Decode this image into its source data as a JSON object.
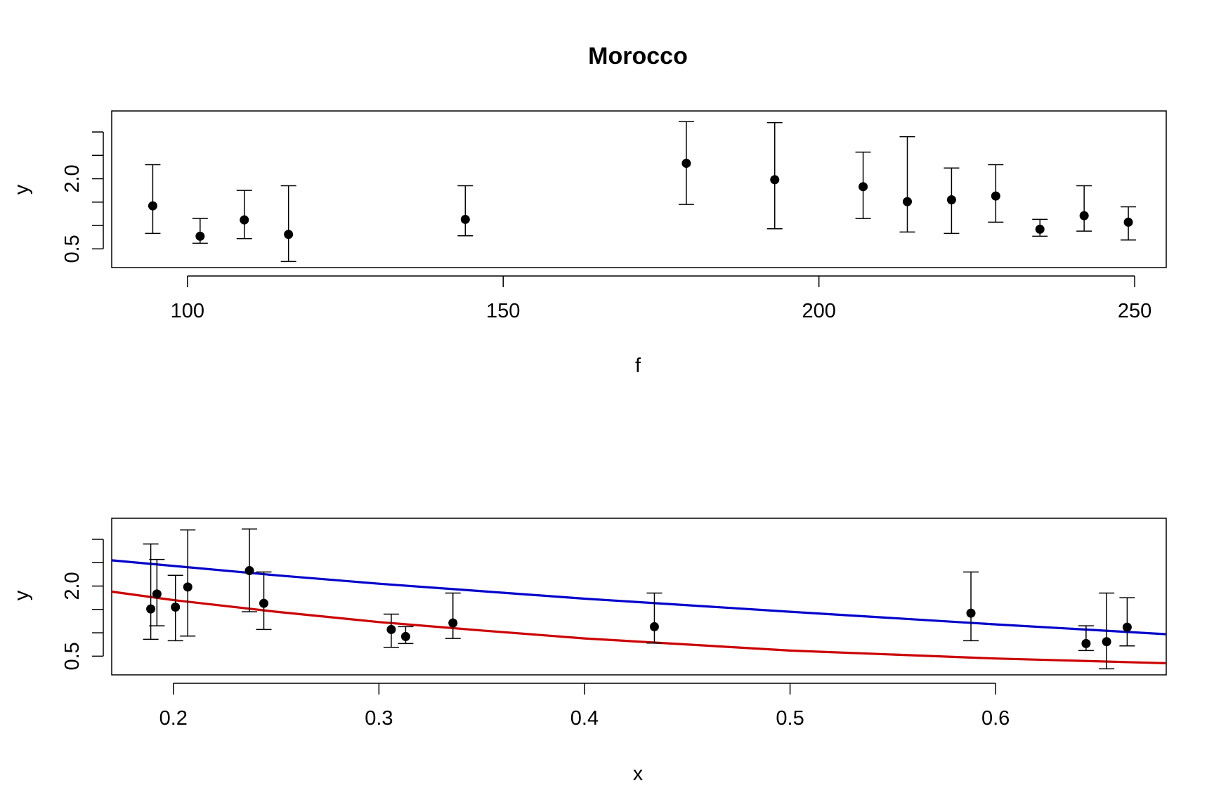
{
  "chart_data": [
    {
      "type": "scatter",
      "title": "Morocco",
      "xlabel": "f",
      "ylabel": "y",
      "xlim": [
        88,
        255
      ],
      "ylim": [
        0.1,
        3.45
      ],
      "xticks": [
        100,
        150,
        200,
        250
      ],
      "yticks": [
        0.5,
        1.0,
        1.5,
        2.0,
        2.5,
        3.0
      ],
      "ytick_labels": [
        "0.5",
        "",
        "",
        "2.0",
        "",
        ""
      ],
      "error_bars": true,
      "series": [
        {
          "color": "#000000",
          "points": [
            {
              "x": 94.5,
              "y": 1.42,
              "lo": 0.83,
              "hi": 2.3
            },
            {
              "x": 102,
              "y": 0.77,
              "lo": 0.62,
              "hi": 1.15
            },
            {
              "x": 109,
              "y": 1.12,
              "lo": 0.72,
              "hi": 1.75
            },
            {
              "x": 116,
              "y": 0.81,
              "lo": 0.23,
              "hi": 1.85
            },
            {
              "x": 144,
              "y": 1.13,
              "lo": 0.78,
              "hi": 1.85
            },
            {
              "x": 179,
              "y": 2.33,
              "lo": 1.45,
              "hi": 3.22
            },
            {
              "x": 193,
              "y": 1.98,
              "lo": 0.93,
              "hi": 3.2
            },
            {
              "x": 207,
              "y": 1.83,
              "lo": 1.15,
              "hi": 2.57
            },
            {
              "x": 214,
              "y": 1.51,
              "lo": 0.86,
              "hi": 2.9
            },
            {
              "x": 221,
              "y": 1.55,
              "lo": 0.83,
              "hi": 2.23
            },
            {
              "x": 228,
              "y": 1.63,
              "lo": 1.07,
              "hi": 2.3
            },
            {
              "x": 235,
              "y": 0.92,
              "lo": 0.77,
              "hi": 1.13
            },
            {
              "x": 242,
              "y": 1.21,
              "lo": 0.88,
              "hi": 1.85
            },
            {
              "x": 249,
              "y": 1.07,
              "lo": 0.69,
              "hi": 1.4
            }
          ]
        }
      ]
    },
    {
      "type": "scatter",
      "title": "",
      "xlabel": "x",
      "ylabel": "y",
      "xlim": [
        0.17,
        0.683
      ],
      "ylim": [
        0.1,
        3.45
      ],
      "xticks": [
        0.2,
        0.3,
        0.4,
        0.5,
        0.6
      ],
      "xtick_labels": [
        "0.2",
        "0.3",
        "0.4",
        "0.5",
        "0.6"
      ],
      "yticks": [
        0.5,
        1.0,
        1.5,
        2.0,
        2.5,
        3.0
      ],
      "ytick_labels": [
        "0.5",
        "",
        "",
        "2.0",
        "",
        ""
      ],
      "error_bars": true,
      "series": [
        {
          "color": "#000000",
          "points": [
            {
              "x": 0.189,
              "y": 1.51,
              "lo": 0.86,
              "hi": 2.9
            },
            {
              "x": 0.192,
              "y": 1.83,
              "lo": 1.15,
              "hi": 2.57
            },
            {
              "x": 0.201,
              "y": 1.55,
              "lo": 0.83,
              "hi": 2.23
            },
            {
              "x": 0.207,
              "y": 1.98,
              "lo": 0.93,
              "hi": 3.2
            },
            {
              "x": 0.237,
              "y": 2.33,
              "lo": 1.45,
              "hi": 3.22
            },
            {
              "x": 0.244,
              "y": 1.63,
              "lo": 1.07,
              "hi": 2.3
            },
            {
              "x": 0.306,
              "y": 1.07,
              "lo": 0.69,
              "hi": 1.4
            },
            {
              "x": 0.313,
              "y": 0.92,
              "lo": 0.77,
              "hi": 1.13
            },
            {
              "x": 0.336,
              "y": 1.21,
              "lo": 0.88,
              "hi": 1.85
            },
            {
              "x": 0.434,
              "y": 1.13,
              "lo": 0.78,
              "hi": 1.85
            },
            {
              "x": 0.588,
              "y": 1.42,
              "lo": 0.83,
              "hi": 2.3
            },
            {
              "x": 0.644,
              "y": 0.77,
              "lo": 0.62,
              "hi": 1.15
            },
            {
              "x": 0.654,
              "y": 0.81,
              "lo": 0.23,
              "hi": 1.85
            },
            {
              "x": 0.664,
              "y": 1.12,
              "lo": 0.72,
              "hi": 1.75
            }
          ]
        }
      ],
      "curves": [
        {
          "color": "#0000cc",
          "points": [
            [
              0.17,
              2.55
            ],
            [
              0.25,
              2.23
            ],
            [
              0.3,
              2.05
            ],
            [
              0.4,
              1.73
            ],
            [
              0.5,
              1.45
            ],
            [
              0.6,
              1.18
            ],
            [
              0.683,
              0.97
            ]
          ]
        },
        {
          "color": "#cc0000",
          "points": [
            [
              0.17,
              1.88
            ],
            [
              0.2,
              1.7
            ],
            [
              0.25,
              1.45
            ],
            [
              0.3,
              1.23
            ],
            [
              0.35,
              1.05
            ],
            [
              0.4,
              0.88
            ],
            [
              0.5,
              0.62
            ],
            [
              0.6,
              0.45
            ],
            [
              0.683,
              0.35
            ]
          ]
        }
      ]
    }
  ]
}
